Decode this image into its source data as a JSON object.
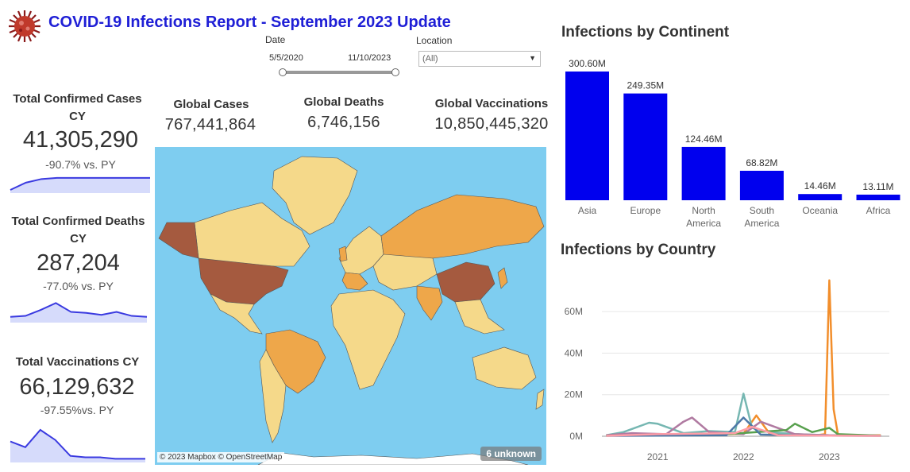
{
  "header": {
    "title": "COVID-19 Infections Report - September 2023 Update"
  },
  "filters": {
    "date_label": "Date",
    "date_start": "5/5/2020",
    "date_end": "11/10/2023",
    "location_label": "Location",
    "location_value": "(All)"
  },
  "kpis": {
    "cases": {
      "title": "Total Confirmed Cases CY",
      "value": "41,305,290",
      "delta": "-90.7% vs. PY"
    },
    "deaths": {
      "title": "Total Confirmed Deaths CY",
      "value": "287,204",
      "delta": "-77.0% vs. PY"
    },
    "vaccinations": {
      "title": "Total Vaccinations CY",
      "value": "66,129,632",
      "delta": "-97.55%vs. PY"
    }
  },
  "global": {
    "cases_label": "Global Cases",
    "cases_value": "767,441,864",
    "deaths_label": "Global Deaths",
    "deaths_value": "6,746,156",
    "vacc_label": "Global Vaccinations",
    "vacc_value": "10,850,445,320"
  },
  "map": {
    "credit": "© 2023 Mapbox © OpenStreetMap",
    "unknown": "6 unknown"
  },
  "colors": {
    "title": "#1f1fd6",
    "bar": "#0000ee",
    "ocean": "#7ecdf0",
    "land_low": "#f5d98a",
    "land_mid": "#eea74a",
    "land_high": "#a55a3f"
  },
  "chart_data": [
    {
      "type": "bar",
      "title": "Infections by Continent",
      "categories": [
        "Asia",
        "Europe",
        "North America",
        "South America",
        "Oceania",
        "Africa"
      ],
      "values": [
        300.6,
        249.35,
        124.46,
        68.82,
        14.46,
        13.11
      ],
      "value_labels": [
        "300.60M",
        "249.35M",
        "124.46M",
        "68.82M",
        "14.46M",
        "13.11M"
      ],
      "unit": "M"
    },
    {
      "type": "line",
      "title": "Infections by Country",
      "y_ticks": [
        "0M",
        "20M",
        "40M",
        "60M"
      ],
      "x_ticks": [
        "2021",
        "2022",
        "2023"
      ],
      "ylim": [
        0,
        78
      ],
      "xlim": [
        2020.35,
        2023.7
      ],
      "series": [
        {
          "color": "#f28e2b",
          "x": [
            2020.4,
            2021.0,
            2021.5,
            2022.0,
            2022.15,
            2022.3,
            2022.7,
            2022.85,
            2022.95,
            2023.0,
            2023.05,
            2023.1,
            2023.2,
            2023.6
          ],
          "y": [
            0.5,
            1.0,
            0.8,
            1.2,
            10.0,
            1.5,
            0.8,
            0.5,
            1.0,
            75.0,
            13.0,
            1.0,
            0.5,
            0.5
          ]
        },
        {
          "color": "#76b7b2",
          "x": [
            2020.4,
            2020.6,
            2020.9,
            2021.0,
            2021.3,
            2021.6,
            2021.9,
            2022.0,
            2022.1,
            2022.3,
            2022.6,
            2023.0,
            2023.6
          ],
          "y": [
            0.5,
            2.0,
            6.5,
            6.0,
            1.5,
            2.5,
            2.0,
            20.5,
            4.0,
            2.0,
            1.0,
            0.5,
            0.3
          ]
        },
        {
          "color": "#b07aa1",
          "x": [
            2020.4,
            2020.7,
            2021.1,
            2021.3,
            2021.4,
            2021.6,
            2022.0,
            2022.2,
            2022.6,
            2023.0,
            2023.6
          ],
          "y": [
            0.5,
            1.5,
            1.0,
            7.0,
            9.0,
            2.0,
            1.0,
            7.0,
            1.0,
            0.5,
            0.3
          ]
        },
        {
          "color": "#59a14f",
          "x": [
            2020.4,
            2021.0,
            2021.8,
            2022.5,
            2022.6,
            2022.8,
            2023.0,
            2023.1,
            2023.6
          ],
          "y": [
            0.3,
            0.5,
            1.0,
            3.0,
            6.0,
            2.0,
            4.0,
            1.0,
            0.3
          ]
        },
        {
          "color": "#4e79a7",
          "x": [
            2020.4,
            2021.0,
            2021.8,
            2022.0,
            2022.2,
            2022.6,
            2023.0,
            2023.6
          ],
          "y": [
            0.2,
            0.3,
            0.5,
            9.0,
            0.8,
            0.5,
            0.3,
            0.2
          ]
        },
        {
          "color": "#ff9da7",
          "x": [
            2020.4,
            2021.0,
            2021.9,
            2022.1,
            2022.4,
            2023.0,
            2023.6
          ],
          "y": [
            0.2,
            1.0,
            1.5,
            4.5,
            0.5,
            0.3,
            0.2
          ]
        }
      ]
    },
    {
      "type": "area",
      "title": "",
      "name": "cases-sparkline",
      "y": [
        2,
        8,
        11,
        12,
        12,
        12,
        12,
        12,
        12,
        12
      ]
    },
    {
      "type": "area",
      "title": "",
      "name": "deaths-sparkline",
      "y": [
        5,
        6,
        12,
        19,
        10,
        9,
        7,
        10,
        6,
        5
      ]
    },
    {
      "type": "area",
      "title": "",
      "name": "vaccinations-sparkline",
      "y": [
        14,
        10,
        22,
        15,
        4,
        3,
        3,
        2,
        2,
        2
      ]
    }
  ]
}
